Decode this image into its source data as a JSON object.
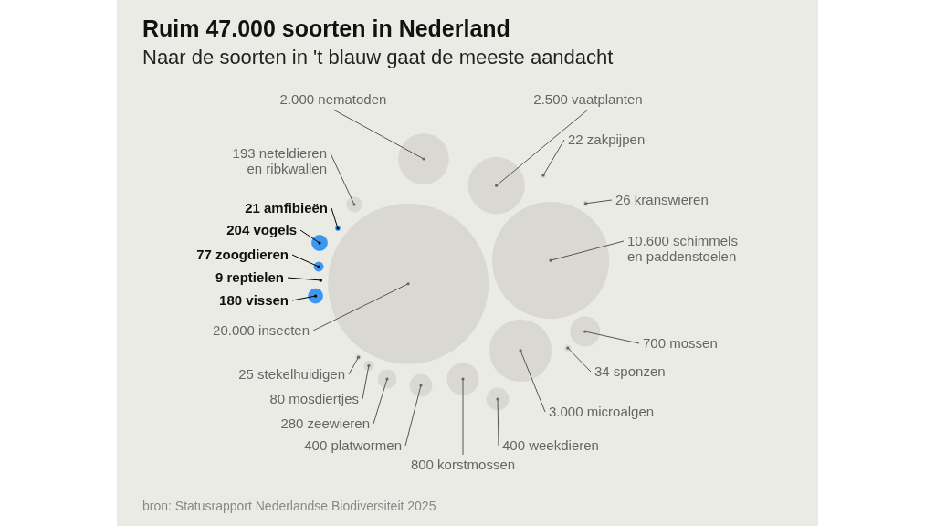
{
  "chart_data": {
    "type": "other",
    "title": "Ruim 47.000 soorten in Nederland",
    "subtitle": "Naar de soorten in 't blauw gaat de meeste aandacht",
    "categories": [
      "nematoden",
      "vaatplanten",
      "zakpijpen",
      "kranswieren",
      "schimmels\nen paddenstoelen",
      "mossen",
      "sponzen",
      "microalgen",
      "weekdieren",
      "korstmossen",
      "platwormen",
      "zeewieren",
      "mosdiertjes",
      "stekelhuidigen",
      "insecten",
      "vissen",
      "reptielen",
      "zoogdieren",
      "vogels",
      "amfibieën",
      "neteldieren\nen ribkwallen"
    ],
    "values": [
      2000,
      2500,
      22,
      26,
      10600,
      700,
      34,
      3000,
      400,
      800,
      400,
      280,
      80,
      25,
      20000,
      180,
      9,
      77,
      204,
      21,
      193
    ],
    "value_labels": [
      "2.000",
      "2.500",
      "22",
      "26",
      "10.600",
      "700",
      "34",
      "3.000",
      "400",
      "800",
      "400",
      "280",
      "80",
      "25",
      "20.000",
      "180",
      "9",
      "77",
      "204",
      "21",
      "193"
    ],
    "colors": [
      "#d9d8d1",
      "#d9d8d1",
      "#d9d8d1",
      "#d9d8d1",
      "#d9d8d1",
      "#d9d8d1",
      "#d9d8d1",
      "#d9d8d1",
      "#d9d8d1",
      "#d9d8d1",
      "#d9d8d1",
      "#d9d8d1",
      "#d9d8d1",
      "#d9d8d1",
      "#d9d8d1",
      "#3d96f0",
      "#3d96f0",
      "#3d96f0",
      "#3d96f0",
      "#3d96f0",
      "#d9d8d1"
    ],
    "annotations": [
      "bron: Statusrapport Nederlandse Biodiversiteit 2025"
    ]
  }
}
